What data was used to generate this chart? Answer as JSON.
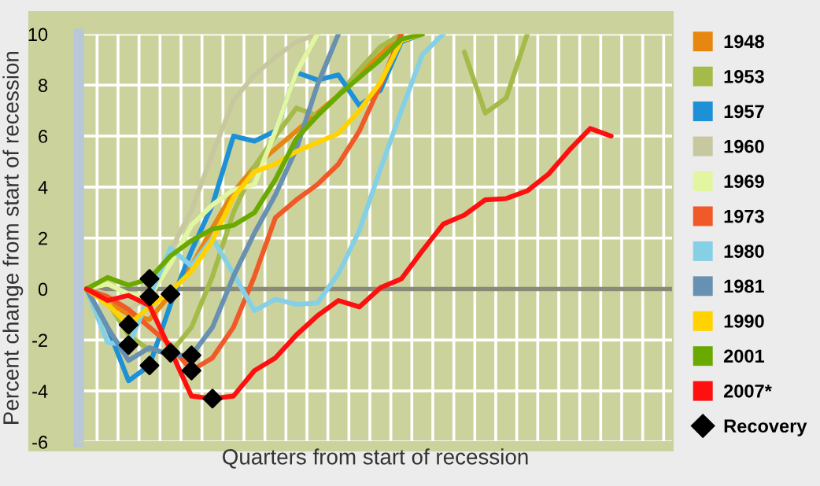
{
  "chart_data": {
    "type": "line",
    "xlabel": "Quarters from start of recession",
    "ylabel": "Percent change from start of recession",
    "categories": [
      null,
      null,
      null,
      null,
      null,
      null,
      null,
      null,
      null,
      null,
      null,
      null,
      null,
      null,
      null,
      null,
      null,
      null,
      null,
      null,
      null,
      null,
      null,
      null,
      null,
      null,
      null,
      null
    ],
    "ylim": [
      -6,
      10
    ],
    "yticks": [
      -6,
      -4,
      -2,
      0,
      2,
      4,
      6,
      8,
      10
    ],
    "tick_labels": "y",
    "grid": true,
    "legend": "right",
    "line_style": "solid",
    "ref_lines": [
      {
        "axis": "y",
        "value": 0,
        "color": "#8a8a78"
      }
    ],
    "series": [
      {
        "name": "1948",
        "color": "#e8870f",
        "values": [
          0,
          -0.5,
          -1.0,
          -1.2,
          -0.2,
          0.9,
          2.4,
          3.8,
          4.8,
          5.5,
          6.2,
          6.9,
          7.6,
          8.4,
          9.2,
          10,
          null,
          null,
          null,
          null,
          null,
          null,
          null,
          null,
          null,
          null,
          null,
          null
        ]
      },
      {
        "name": "1953",
        "color": "#a4bb4a",
        "values": [
          0,
          -0.5,
          -1.8,
          -2.4,
          -2.5,
          -1.5,
          0.5,
          3.0,
          4.8,
          6.0,
          7.1,
          6.8,
          7.6,
          8.6,
          9.5,
          10,
          null,
          null,
          9.3,
          6.9,
          7.5,
          10,
          null,
          null,
          null,
          null,
          null,
          null
        ]
      },
      {
        "name": "1957",
        "color": "#1e90d6",
        "values": [
          0,
          -1.5,
          -3.6,
          -3.0,
          -0.6,
          1.5,
          3.3,
          6.0,
          5.8,
          6.2,
          8.5,
          8.2,
          8.4,
          7.2,
          7.8,
          9.7,
          10,
          null,
          null,
          null,
          null,
          null,
          null,
          null,
          null,
          null,
          null,
          null
        ]
      },
      {
        "name": "1960",
        "color": "#c8c8a0",
        "values": [
          0,
          -0.2,
          -0.8,
          -0.3,
          1.5,
          3.1,
          5.3,
          7.4,
          8.4,
          9.1,
          9.7,
          10,
          null,
          null,
          null,
          null,
          null,
          null,
          null,
          null,
          null,
          null,
          null,
          null,
          null,
          null,
          null,
          null
        ]
      },
      {
        "name": "1969",
        "color": "#e2f5a0",
        "values": [
          0,
          0.2,
          -0.2,
          -0.3,
          1.0,
          2.5,
          3.3,
          3.9,
          4.1,
          6.2,
          8.5,
          10,
          null,
          null,
          null,
          null,
          null,
          null,
          null,
          null,
          null,
          null,
          null,
          null,
          null,
          null,
          null,
          null
        ]
      },
      {
        "name": "1973",
        "color": "#f05a28",
        "values": [
          0,
          -0.3,
          -0.8,
          -1.5,
          -2.2,
          -3.2,
          -2.7,
          -1.5,
          0.5,
          2.8,
          3.5,
          4.1,
          4.9,
          6.2,
          8.0,
          10,
          null,
          null,
          null,
          null,
          null,
          null,
          null,
          null,
          null,
          null,
          null,
          null
        ]
      },
      {
        "name": "1980",
        "color": "#86d0e6",
        "values": [
          0,
          -2.1,
          -2.2,
          -0.3,
          1.6,
          0.9,
          2.0,
          0.6,
          -0.85,
          -0.4,
          -0.6,
          -0.55,
          0.6,
          2.3,
          4.7,
          7.0,
          9.2,
          10,
          null,
          null,
          null,
          null,
          null,
          null,
          null,
          null,
          null,
          null
        ]
      },
      {
        "name": "1981",
        "color": "#6890b0",
        "values": [
          0,
          -1.5,
          -2.8,
          -2.3,
          -2.6,
          -2.6,
          -1.5,
          0.5,
          2.2,
          3.7,
          5.5,
          8.0,
          10,
          null,
          null,
          null,
          null,
          null,
          null,
          null,
          null,
          null,
          null,
          null,
          null,
          null,
          null,
          null
        ]
      },
      {
        "name": "1990",
        "color": "#ffd200",
        "values": [
          0,
          -0.6,
          -1.4,
          -0.7,
          -0.1,
          0.7,
          1.9,
          3.6,
          4.6,
          4.9,
          5.4,
          5.75,
          6.1,
          7.0,
          8.1,
          9.75,
          10,
          null,
          null,
          null,
          null,
          null,
          null,
          null,
          null,
          null,
          null,
          null
        ]
      },
      {
        "name": "2001",
        "color": "#6aaa00",
        "values": [
          0,
          0.45,
          0.15,
          0.4,
          1.3,
          1.9,
          2.35,
          2.5,
          3.0,
          4.3,
          5.9,
          6.8,
          7.6,
          8.3,
          9.0,
          9.8,
          10,
          null,
          null,
          null,
          null,
          null,
          null,
          null,
          null,
          null,
          null,
          null
        ]
      },
      {
        "name": "2007*",
        "color": "#ff1010",
        "values": [
          0,
          -0.45,
          -0.25,
          -0.65,
          -2.4,
          -4.2,
          -4.3,
          -4.2,
          -3.2,
          -2.7,
          -1.8,
          -1.05,
          -0.45,
          -0.7,
          0.05,
          0.4,
          1.5,
          2.55,
          2.9,
          3.5,
          3.55,
          3.85,
          4.5,
          5.45,
          6.3,
          6.0,
          null,
          null
        ]
      },
      {
        "name": "Recovery",
        "type": "scatter",
        "marker": "diamond",
        "color": "#000000",
        "values": [
          null,
          null,
          -1.4,
          0.4,
          -0.2,
          -2.6,
          -4.3,
          null,
          null,
          null,
          null,
          null,
          null,
          null,
          null,
          null,
          null,
          null,
          null,
          null,
          null,
          null,
          null,
          null,
          null,
          null,
          null,
          null
        ]
      },
      {
        "type": "scatter",
        "marker": "diamond",
        "color": "#000000",
        "values": [
          null,
          null,
          -2.2,
          -0.3,
          -2.5,
          -3.2,
          null,
          null,
          null,
          null,
          null,
          null,
          null,
          null,
          null,
          null,
          null,
          null,
          null,
          null,
          null,
          null,
          null,
          null,
          null,
          null,
          null,
          null
        ]
      },
      {
        "type": "scatter",
        "marker": "diamond",
        "color": "#000000",
        "values": [
          null,
          null,
          null,
          -3.0,
          null,
          null,
          null,
          null,
          null,
          null,
          null,
          null,
          null,
          null,
          null,
          null,
          null,
          null,
          null,
          null,
          null,
          null,
          null,
          null,
          null,
          null,
          null,
          null
        ]
      }
    ]
  }
}
